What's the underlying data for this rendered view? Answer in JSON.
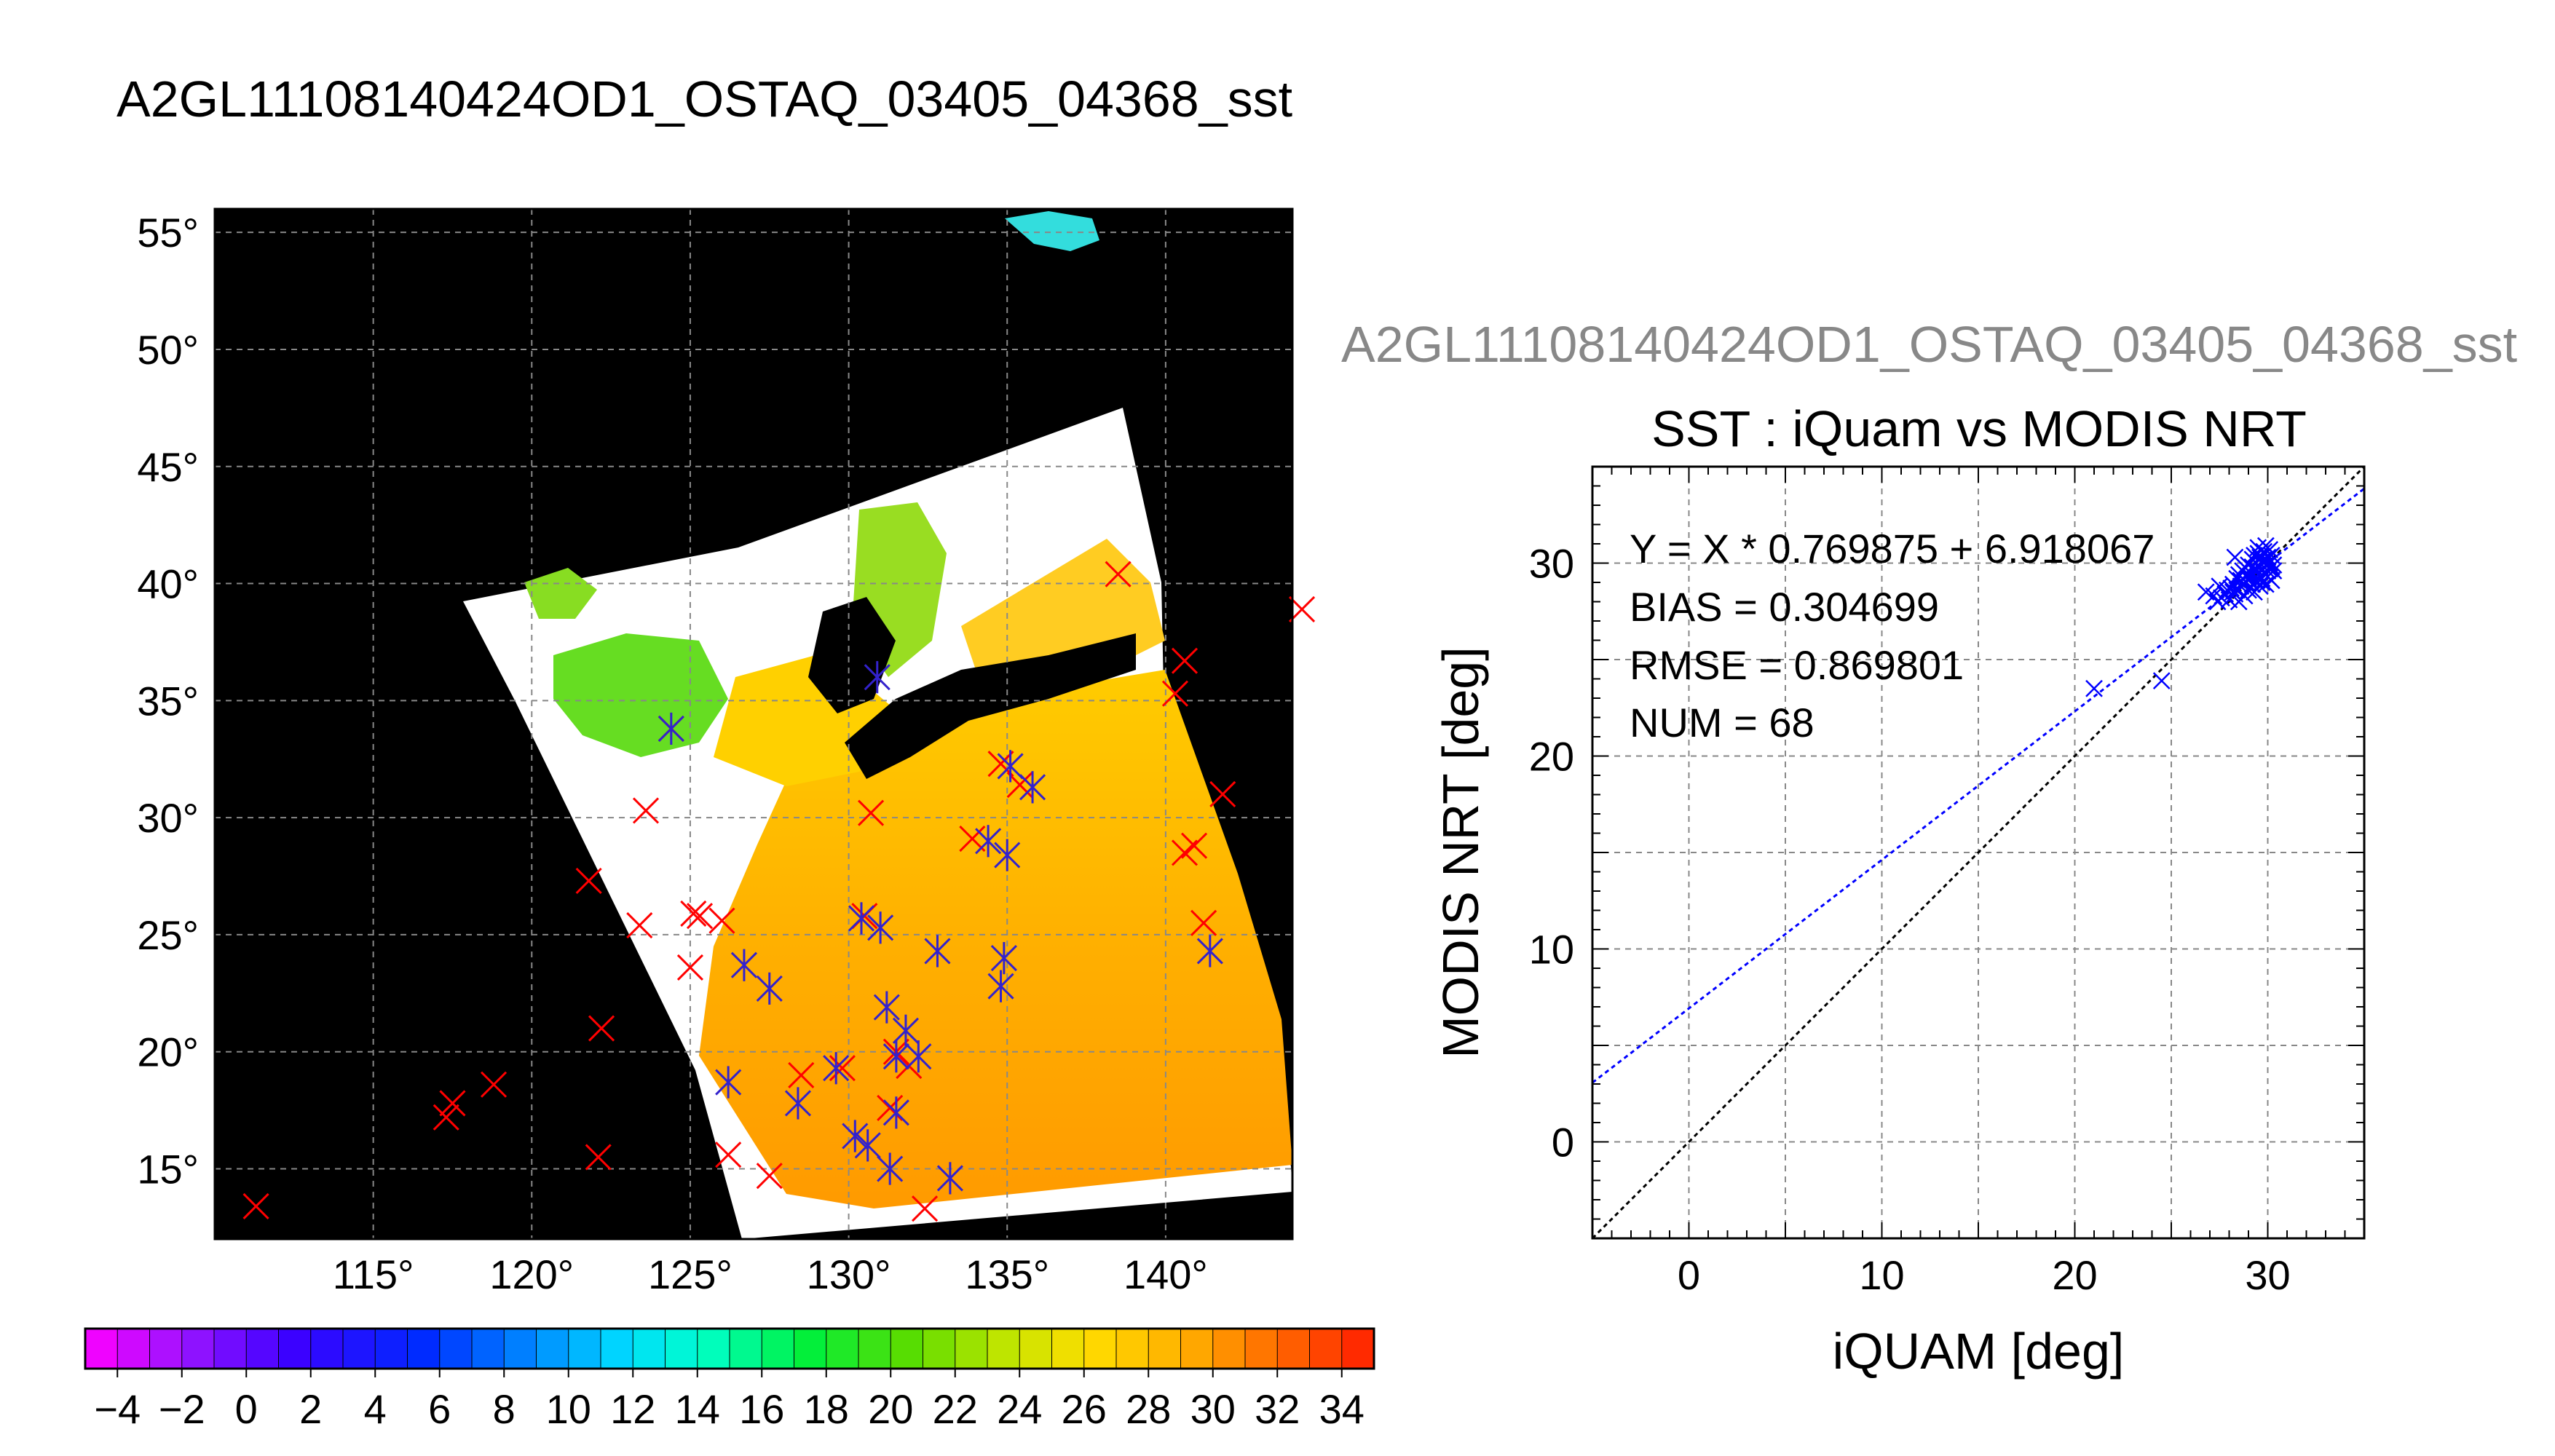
{
  "page": {
    "title": "A2GL11108140424OD1_OSTAQ_03405_04368_sst"
  },
  "map": {
    "lon_range": [
      110,
      144
    ],
    "lat_range": [
      12,
      56
    ],
    "lon_ticks": [
      115,
      120,
      125,
      130,
      135,
      140
    ],
    "lat_ticks": [
      15,
      20,
      25,
      30,
      35,
      40,
      45,
      50,
      55
    ],
    "degree_symbol": "°",
    "grid": true,
    "background_color": "#000000",
    "swath_color": "#ffffff",
    "matchups_red": [
      [
        111.3,
        13.4
      ],
      [
        117.3,
        17.2
      ],
      [
        117.5,
        17.8
      ],
      [
        118.8,
        18.6
      ],
      [
        122.1,
        15.5
      ],
      [
        122.2,
        21.0
      ],
      [
        121.8,
        27.3
      ],
      [
        123.4,
        25.4
      ],
      [
        123.6,
        30.3
      ],
      [
        124.4,
        33.8
      ],
      [
        125.1,
        25.9
      ],
      [
        125.3,
        25.8
      ],
      [
        125.0,
        23.6
      ],
      [
        126.0,
        25.6
      ],
      [
        126.2,
        15.6
      ],
      [
        127.5,
        14.7
      ],
      [
        128.5,
        19.0
      ],
      [
        129.8,
        19.3
      ],
      [
        130.5,
        25.8
      ],
      [
        131.3,
        17.6
      ],
      [
        130.7,
        30.2
      ],
      [
        131.5,
        20.0
      ],
      [
        131.9,
        19.4
      ],
      [
        132.4,
        13.3
      ],
      [
        133.9,
        29.1
      ],
      [
        134.8,
        32.3
      ],
      [
        135.4,
        31.4
      ],
      [
        138.5,
        40.4
      ],
      [
        140.3,
        35.3
      ],
      [
        140.6,
        36.7
      ],
      [
        140.6,
        28.5
      ],
      [
        140.9,
        28.8
      ],
      [
        141.2,
        25.5
      ],
      [
        141.8,
        31.0
      ],
      [
        144.3,
        38.9
      ]
    ],
    "matchups_blue": [
      [
        124.4,
        33.8
      ],
      [
        126.2,
        18.7
      ],
      [
        126.7,
        23.7
      ],
      [
        127.5,
        22.7
      ],
      [
        128.4,
        17.8
      ],
      [
        129.6,
        19.3
      ],
      [
        130.2,
        16.4
      ],
      [
        130.4,
        25.7
      ],
      [
        130.6,
        16.0
      ],
      [
        130.9,
        36.0
      ],
      [
        131.0,
        25.3
      ],
      [
        131.2,
        21.9
      ],
      [
        131.3,
        15.0
      ],
      [
        131.5,
        19.8
      ],
      [
        131.5,
        17.4
      ],
      [
        131.8,
        20.9
      ],
      [
        132.2,
        19.8
      ],
      [
        132.8,
        24.3
      ],
      [
        133.2,
        14.6
      ],
      [
        134.4,
        29.0
      ],
      [
        135.0,
        28.4
      ],
      [
        135.1,
        32.2
      ],
      [
        134.8,
        22.8
      ],
      [
        134.9,
        24.0
      ],
      [
        135.8,
        31.3
      ],
      [
        141.4,
        24.3
      ]
    ]
  },
  "colorbar": {
    "min": -5,
    "max": 35,
    "step": 1,
    "tick_labels": [
      "−4",
      "−2",
      "0",
      "2",
      "4",
      "6",
      "8",
      "10",
      "12",
      "14",
      "16",
      "18",
      "20",
      "22",
      "24",
      "26",
      "28",
      "30",
      "32",
      "34"
    ],
    "tick_values": [
      -4,
      -2,
      0,
      2,
      4,
      6,
      8,
      10,
      12,
      14,
      16,
      18,
      20,
      22,
      24,
      26,
      28,
      30,
      32,
      34
    ]
  },
  "scatter": {
    "header": "A2GL11108140424OD1_OSTAQ_03405_04368_sst",
    "title": "SST : iQuam vs MODIS NRT",
    "xlabel": "iQUAM [deg]",
    "ylabel": "MODIS NRT [deg]",
    "annotations": [
      "Y = X * 0.769875 + 6.918067",
      "BIAS = 0.304699",
      "RMSE = 0.869801",
      "NUM = 68"
    ]
  },
  "chart_data": {
    "type": "scatter",
    "title": "SST : iQuam vs MODIS NRT",
    "xlabel": "iQUAM [deg]",
    "ylabel": "MODIS NRT [deg]",
    "xlim": [
      -5,
      35
    ],
    "ylim": [
      -5,
      35
    ],
    "xticks": [
      0,
      10,
      20,
      30
    ],
    "yticks": [
      0,
      10,
      20,
      30
    ],
    "grid": true,
    "fit": {
      "slope": 0.769875,
      "intercept": 6.918067,
      "color": "#0000ff"
    },
    "one_to_one": {
      "color": "#000000"
    },
    "marker_color": "#0000ff",
    "series": [
      {
        "marker": "x",
        "points": [
          [
            21.0,
            23.5
          ],
          [
            24.5,
            23.9
          ],
          [
            26.8,
            28.5
          ],
          [
            27.2,
            28.3
          ],
          [
            27.6,
            28.2
          ],
          [
            27.9,
            28.6
          ],
          [
            28.0,
            28.1
          ],
          [
            28.2,
            28.9
          ],
          [
            28.3,
            28.4
          ],
          [
            28.4,
            29.2
          ],
          [
            28.5,
            28.0
          ],
          [
            28.6,
            28.8
          ],
          [
            28.7,
            29.6
          ],
          [
            28.8,
            28.3
          ],
          [
            28.9,
            29.0
          ],
          [
            29.0,
            29.9
          ],
          [
            29.0,
            28.6
          ],
          [
            29.1,
            29.3
          ],
          [
            29.2,
            30.2
          ],
          [
            29.2,
            28.9
          ],
          [
            29.3,
            29.6
          ],
          [
            29.3,
            28.5
          ],
          [
            29.4,
            30.0
          ],
          [
            29.4,
            29.1
          ],
          [
            29.5,
            29.4
          ],
          [
            29.5,
            30.5
          ],
          [
            29.6,
            28.8
          ],
          [
            29.6,
            29.8
          ],
          [
            29.7,
            30.1
          ],
          [
            29.7,
            29.2
          ],
          [
            29.8,
            29.5
          ],
          [
            29.8,
            30.6
          ],
          [
            29.9,
            28.9
          ],
          [
            29.9,
            29.9
          ],
          [
            30.0,
            30.3
          ],
          [
            30.0,
            29.3
          ],
          [
            30.1,
            29.7
          ],
          [
            30.1,
            30.0
          ],
          [
            30.2,
            29.1
          ],
          [
            30.2,
            30.4
          ],
          [
            30.3,
            29.6
          ],
          [
            30.3,
            29.9
          ],
          [
            29.4,
            29.7
          ],
          [
            29.1,
            29.5
          ],
          [
            28.9,
            29.4
          ],
          [
            28.6,
            29.1
          ],
          [
            28.1,
            28.7
          ],
          [
            27.8,
            28.4
          ],
          [
            29.5,
            30.8
          ],
          [
            29.9,
            30.9
          ],
          [
            30.1,
            30.7
          ],
          [
            29.7,
            29.0
          ],
          [
            29.2,
            29.8
          ],
          [
            28.7,
            28.9
          ],
          [
            28.4,
            28.6
          ],
          [
            29.8,
            30.2
          ],
          [
            30.0,
            29.6
          ],
          [
            29.6,
            30.3
          ],
          [
            29.3,
            30.4
          ],
          [
            28.8,
            29.8
          ],
          [
            28.5,
            29.4
          ],
          [
            28.2,
            28.5
          ],
          [
            27.5,
            28.8
          ],
          [
            30.2,
            29.8
          ],
          [
            29.0,
            29.2
          ],
          [
            29.9,
            29.4
          ],
          [
            28.3,
            30.3
          ],
          [
            27.4,
            28.0
          ]
        ]
      }
    ]
  }
}
